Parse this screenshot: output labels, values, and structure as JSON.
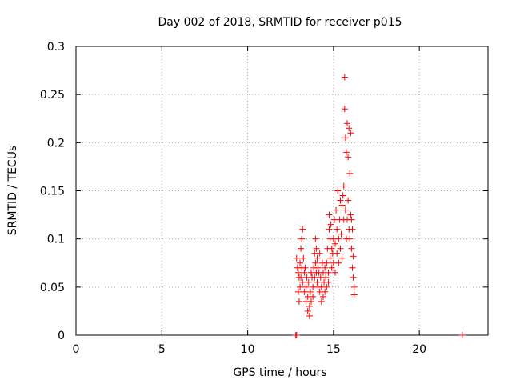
{
  "chart_data": {
    "type": "scatter",
    "title": "Day 002 of 2018, SRMTID for receiver p015",
    "xlabel": "GPS time / hours",
    "ylabel": "SRMTID / TECUs",
    "xlim": [
      0,
      24
    ],
    "ylim": [
      0,
      0.3
    ],
    "xticks": [
      "0",
      "5",
      "10",
      "15",
      "20"
    ],
    "yticks": [
      "0",
      "0.05",
      "0.1",
      "0.15",
      "0.2",
      "0.25",
      "0.3"
    ],
    "grid": true,
    "series": [
      {
        "name": "p015",
        "color": "#ff0000",
        "marker": "+",
        "points": [
          [
            12.8,
            0.0
          ],
          [
            12.85,
            0.0
          ],
          [
            22.5,
            0.0
          ],
          [
            12.85,
            0.08
          ],
          [
            12.9,
            0.07
          ],
          [
            12.95,
            0.065
          ],
          [
            12.95,
            0.045
          ],
          [
            13.0,
            0.06
          ],
          [
            13.0,
            0.035
          ],
          [
            13.05,
            0.075
          ],
          [
            13.05,
            0.05
          ],
          [
            13.1,
            0.09
          ],
          [
            13.1,
            0.06
          ],
          [
            13.15,
            0.1
          ],
          [
            13.15,
            0.07
          ],
          [
            13.2,
            0.11
          ],
          [
            13.2,
            0.055
          ],
          [
            13.25,
            0.08
          ],
          [
            13.3,
            0.065
          ],
          [
            13.3,
            0.045
          ],
          [
            13.35,
            0.07
          ],
          [
            13.4,
            0.05
          ],
          [
            13.4,
            0.035
          ],
          [
            13.45,
            0.06
          ],
          [
            13.5,
            0.04
          ],
          [
            13.5,
            0.025
          ],
          [
            13.55,
            0.055
          ],
          [
            13.6,
            0.03
          ],
          [
            13.6,
            0.02
          ],
          [
            13.65,
            0.045
          ],
          [
            13.7,
            0.065
          ],
          [
            13.7,
            0.035
          ],
          [
            13.75,
            0.06
          ],
          [
            13.8,
            0.05
          ],
          [
            13.8,
            0.04
          ],
          [
            13.85,
            0.07
          ],
          [
            13.9,
            0.085
          ],
          [
            13.9,
            0.06
          ],
          [
            13.95,
            0.1
          ],
          [
            13.95,
            0.075
          ],
          [
            14.0,
            0.09
          ],
          [
            14.0,
            0.065
          ],
          [
            14.05,
            0.08
          ],
          [
            14.05,
            0.055
          ],
          [
            14.1,
            0.07
          ],
          [
            14.1,
            0.05
          ],
          [
            14.15,
            0.065
          ],
          [
            14.2,
            0.085
          ],
          [
            14.2,
            0.045
          ],
          [
            14.25,
            0.06
          ],
          [
            14.3,
            0.05
          ],
          [
            14.3,
            0.035
          ],
          [
            14.35,
            0.075
          ],
          [
            14.4,
            0.065
          ],
          [
            14.4,
            0.04
          ],
          [
            14.45,
            0.055
          ],
          [
            14.5,
            0.07
          ],
          [
            14.5,
            0.045
          ],
          [
            14.55,
            0.06
          ],
          [
            14.6,
            0.075
          ],
          [
            14.6,
            0.05
          ],
          [
            14.65,
            0.09
          ],
          [
            14.7,
            0.065
          ],
          [
            14.7,
            0.055
          ],
          [
            14.75,
            0.11
          ],
          [
            14.75,
            0.125
          ],
          [
            14.8,
            0.08
          ],
          [
            14.8,
            0.1
          ],
          [
            14.85,
            0.115
          ],
          [
            14.9,
            0.09
          ],
          [
            14.9,
            0.07
          ],
          [
            14.95,
            0.085
          ],
          [
            15.0,
            0.1
          ],
          [
            15.0,
            0.075
          ],
          [
            15.05,
            0.12
          ],
          [
            15.1,
            0.095
          ],
          [
            15.1,
            0.065
          ],
          [
            15.15,
            0.13
          ],
          [
            15.2,
            0.085
          ],
          [
            15.2,
            0.11
          ],
          [
            15.25,
            0.15
          ],
          [
            15.3,
            0.1
          ],
          [
            15.3,
            0.075
          ],
          [
            15.35,
            0.12
          ],
          [
            15.4,
            0.14
          ],
          [
            15.4,
            0.09
          ],
          [
            15.45,
            0.105
          ],
          [
            15.5,
            0.135
          ],
          [
            15.5,
            0.08
          ],
          [
            15.55,
            0.145
          ],
          [
            15.6,
            0.155
          ],
          [
            15.6,
            0.12
          ],
          [
            15.65,
            0.235
          ],
          [
            15.65,
            0.268
          ],
          [
            15.7,
            0.205
          ],
          [
            15.7,
            0.13
          ],
          [
            15.75,
            0.19
          ],
          [
            15.75,
            0.1
          ],
          [
            15.8,
            0.22
          ],
          [
            15.8,
            0.12
          ],
          [
            15.85,
            0.185
          ],
          [
            15.85,
            0.14
          ],
          [
            15.9,
            0.215
          ],
          [
            15.9,
            0.11
          ],
          [
            15.95,
            0.168
          ],
          [
            15.95,
            0.1
          ],
          [
            16.0,
            0.21
          ],
          [
            16.0,
            0.125
          ],
          [
            16.05,
            0.12
          ],
          [
            16.05,
            0.09
          ],
          [
            16.1,
            0.11
          ],
          [
            16.1,
            0.07
          ],
          [
            16.15,
            0.082
          ],
          [
            16.15,
            0.06
          ],
          [
            16.2,
            0.05
          ],
          [
            16.2,
            0.042
          ]
        ]
      }
    ]
  }
}
